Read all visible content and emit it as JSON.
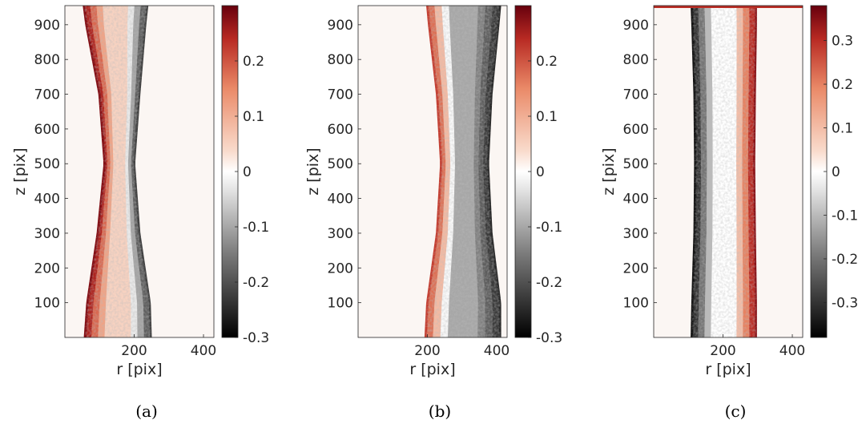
{
  "chart_data": [
    {
      "type": "heatmap",
      "caption": "(a)",
      "xlabel": "r [pix]",
      "ylabel": "z [pix]",
      "xlim": [
        0,
        430
      ],
      "ylim": [
        0,
        955
      ],
      "xticks": [
        200,
        400
      ],
      "yticks": [
        100,
        200,
        300,
        400,
        500,
        600,
        700,
        800,
        900
      ],
      "colorbar": {
        "min": -0.3,
        "max": 0.3,
        "ticks": [
          -0.3,
          -0.2,
          -0.1,
          0,
          0.1,
          0.2
        ]
      },
      "features": {
        "left_edge_r": {
          "z": [
            0,
            100,
            300,
            500,
            700,
            900,
            955
          ],
          "r": [
            58,
            65,
            95,
            115,
            100,
            62,
            55
          ],
          "value": 0.28
        },
        "right_edge_r": {
          "z": [
            0,
            100,
            300,
            500,
            700,
            900,
            955
          ],
          "r": [
            248,
            245,
            215,
            200,
            215,
            232,
            238
          ],
          "value": -0.22
        },
        "interior_value": 0.05
      }
    },
    {
      "type": "heatmap",
      "caption": "(b)",
      "xlabel": "r [pix]",
      "ylabel": "z [pix]",
      "xlim": [
        0,
        430
      ],
      "ylim": [
        0,
        955
      ],
      "xticks": [
        200,
        400
      ],
      "yticks": [
        100,
        200,
        300,
        400,
        500,
        600,
        700,
        800,
        900
      ],
      "colorbar": {
        "min": -0.3,
        "max": 0.3,
        "ticks": [
          -0.3,
          -0.2,
          -0.1,
          0,
          0.1,
          0.2
        ]
      },
      "features": {
        "left_edge_r": {
          "z": [
            0,
            100,
            300,
            500,
            700,
            900,
            955
          ],
          "r": [
            195,
            200,
            228,
            240,
            228,
            205,
            200
          ],
          "value": 0.22
        },
        "right_edge_r": {
          "z": [
            0,
            100,
            300,
            500,
            700,
            900,
            955
          ],
          "r": [
            410,
            410,
            385,
            375,
            385,
            405,
            410
          ],
          "value": -0.25
        },
        "interior_value": -0.1
      }
    },
    {
      "type": "heatmap",
      "caption": "(c)",
      "xlabel": "r [pix]",
      "ylabel": "z [pix]",
      "xlim": [
        0,
        430
      ],
      "ylim": [
        0,
        955
      ],
      "xticks": [
        200,
        400
      ],
      "yticks": [
        100,
        200,
        300,
        400,
        500,
        600,
        700,
        800,
        900
      ],
      "colorbar": {
        "min": -0.38,
        "max": 0.38,
        "ticks": [
          -0.3,
          -0.2,
          -0.1,
          0,
          0.1,
          0.2,
          0.3
        ]
      },
      "features": {
        "left_edge_r": {
          "z": [
            0,
            100,
            300,
            500,
            700,
            900,
            955
          ],
          "r": [
            110,
            112,
            118,
            120,
            118,
            112,
            110
          ],
          "value": -0.35
        },
        "right_edge_r": {
          "z": [
            0,
            100,
            300,
            500,
            700,
            900,
            955
          ],
          "r": [
            295,
            295,
            292,
            290,
            292,
            295,
            295
          ],
          "value": 0.35
        },
        "interior_value": 0.0,
        "top_band_value": 0.3
      }
    }
  ]
}
